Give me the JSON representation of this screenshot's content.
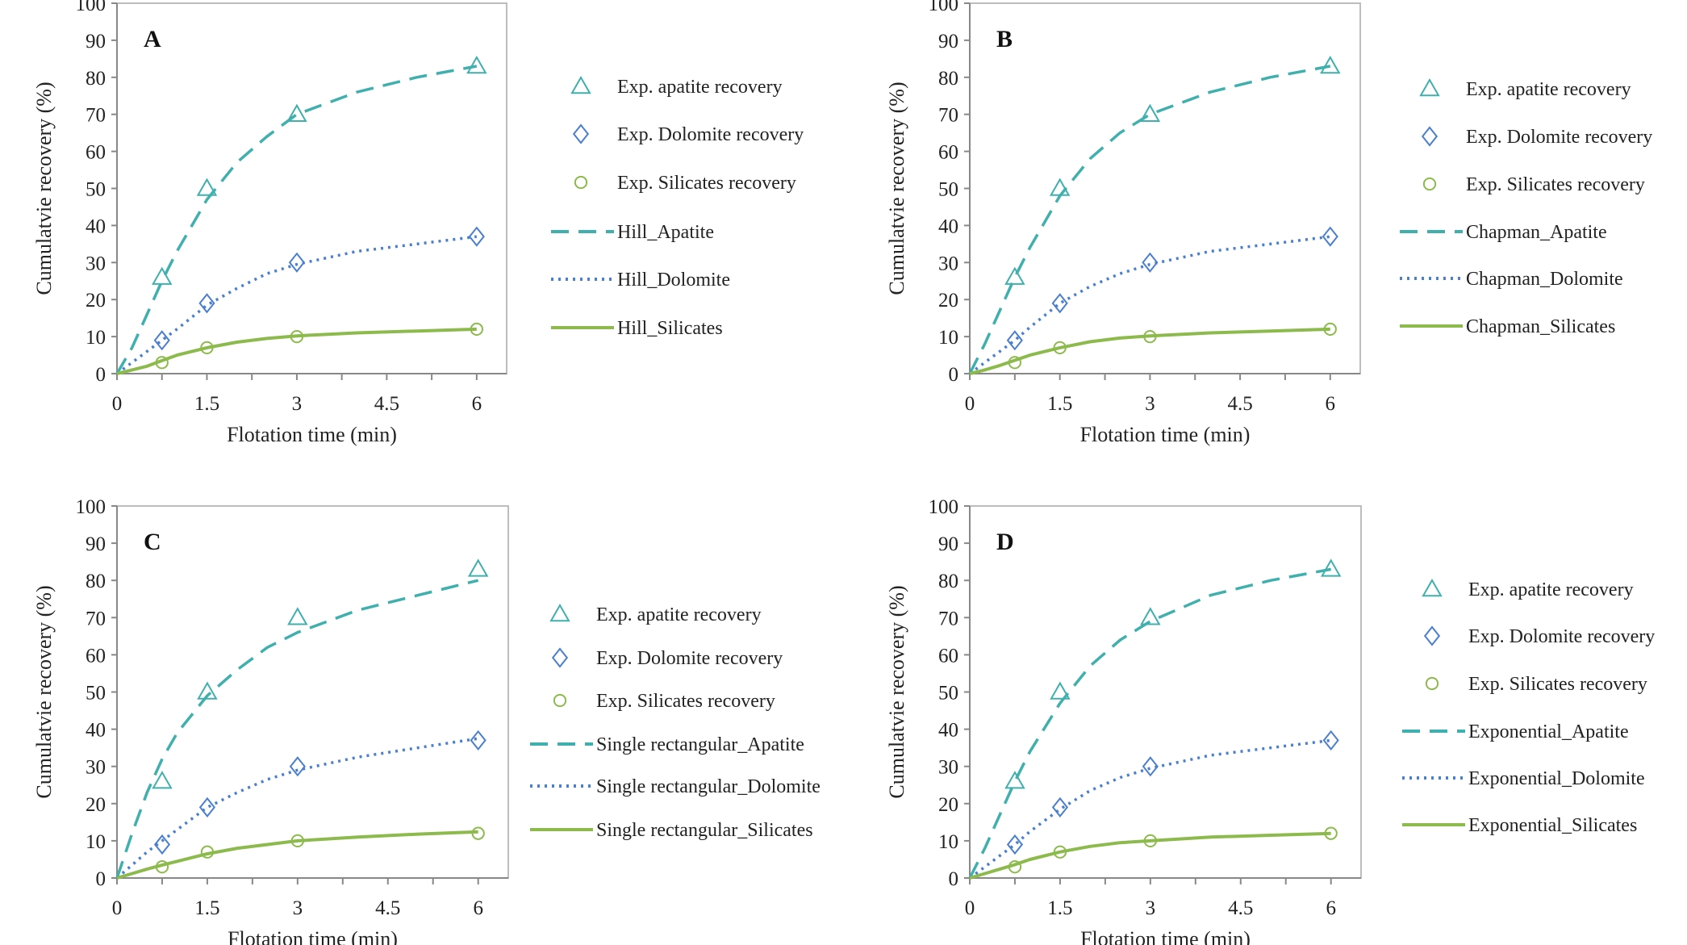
{
  "chart_data": [
    {
      "type": "line",
      "panel_label": "A",
      "xlabel": "Flotation time (min)",
      "ylabel": "Cumulatvie recovery  (%)",
      "xlim": [
        0,
        6.5
      ],
      "ylim": [
        0,
        100
      ],
      "xticks": [
        0,
        1.5,
        3,
        4.5,
        6
      ],
      "xtick_labels": [
        "0",
        "1.5",
        "3",
        "4.5",
        "6"
      ],
      "yticks": [
        0,
        10,
        20,
        30,
        40,
        50,
        60,
        70,
        80,
        90,
        100
      ],
      "ytick_labels": [
        "0",
        "10",
        "20",
        "30",
        "40",
        "50",
        "60",
        "70",
        "80",
        "90",
        "100"
      ],
      "grid": false,
      "legend_position": "right",
      "experimental": [
        {
          "name": "Exp. apatite recovery",
          "marker": "triangle",
          "color": "#3fb0ad",
          "x": [
            0,
            0.75,
            1.5,
            3,
            6
          ],
          "y": [
            0,
            26,
            50,
            70,
            83
          ]
        },
        {
          "name": "Exp. Dolomite recovery",
          "marker": "diamond",
          "color": "#4a7fcf",
          "x": [
            0,
            0.75,
            1.5,
            3,
            6
          ],
          "y": [
            0,
            9,
            19,
            30,
            37
          ]
        },
        {
          "name": "Exp. Silicates recovery",
          "marker": "circle",
          "color": "#8dba4c",
          "x": [
            0,
            0.75,
            1.5,
            3,
            6
          ],
          "y": [
            0,
            3,
            7,
            10,
            12
          ]
        }
      ],
      "models": [
        {
          "name": "Hill_Apatite",
          "style": "dashed",
          "color": "#3fb0ad",
          "x": [
            0,
            0.25,
            0.5,
            0.75,
            1,
            1.5,
            2,
            2.5,
            3,
            4,
            5,
            6
          ],
          "y": [
            0,
            7,
            16,
            25,
            33,
            47,
            57,
            64,
            70,
            76,
            80,
            83
          ]
        },
        {
          "name": "Hill_Dolomite",
          "style": "dotted",
          "color": "#4a7fcf",
          "x": [
            0,
            0.25,
            0.5,
            0.75,
            1,
            1.5,
            2,
            2.5,
            3,
            4,
            5,
            6
          ],
          "y": [
            0,
            3,
            6,
            9,
            12,
            18.5,
            23,
            27,
            29.5,
            33,
            35,
            37
          ]
        },
        {
          "name": "Hill_Silicates",
          "style": "solid",
          "color": "#8dba4c",
          "x": [
            0,
            0.25,
            0.5,
            0.75,
            1,
            1.5,
            2,
            2.5,
            3,
            4,
            5,
            6
          ],
          "y": [
            0,
            1,
            2,
            3.5,
            5,
            7,
            8.5,
            9.5,
            10.2,
            11,
            11.5,
            12
          ]
        }
      ]
    },
    {
      "type": "line",
      "panel_label": "B",
      "xlabel": "Flotation time (min)",
      "ylabel": "Cumulatvie recovery  (%)",
      "xlim": [
        0,
        6.5
      ],
      "ylim": [
        0,
        100
      ],
      "xticks": [
        0,
        1.5,
        3,
        4.5,
        6
      ],
      "xtick_labels": [
        "0",
        "1.5",
        "3",
        "4.5",
        "6"
      ],
      "yticks": [
        0,
        10,
        20,
        30,
        40,
        50,
        60,
        70,
        80,
        90,
        100
      ],
      "ytick_labels": [
        "0",
        "10",
        "20",
        "30",
        "40",
        "50",
        "60",
        "70",
        "80",
        "90",
        "100"
      ],
      "grid": false,
      "legend_position": "right",
      "experimental": [
        {
          "name": "Exp. apatite recovery",
          "marker": "triangle",
          "color": "#3fb0ad",
          "x": [
            0,
            0.75,
            1.5,
            3,
            6
          ],
          "y": [
            0,
            26,
            50,
            70,
            83
          ]
        },
        {
          "name": "Exp. Dolomite recovery",
          "marker": "diamond",
          "color": "#4a7fcf",
          "x": [
            0,
            0.75,
            1.5,
            3,
            6
          ],
          "y": [
            0,
            9,
            19,
            30,
            37
          ]
        },
        {
          "name": "Exp. Silicates recovery",
          "marker": "circle",
          "color": "#8dba4c",
          "x": [
            0,
            0.75,
            1.5,
            3,
            6
          ],
          "y": [
            0,
            3,
            7,
            10,
            12
          ]
        }
      ],
      "models": [
        {
          "name": "Chapman_Apatite",
          "style": "dashed",
          "color": "#3fb0ad",
          "x": [
            0,
            0.25,
            0.5,
            0.75,
            1,
            1.5,
            2,
            2.5,
            3,
            4,
            5,
            6
          ],
          "y": [
            0,
            8,
            17,
            26,
            34,
            48,
            58,
            65,
            70,
            76,
            80,
            83
          ]
        },
        {
          "name": "Chapman_Dolomite",
          "style": "dotted",
          "color": "#4a7fcf",
          "x": [
            0,
            0.25,
            0.5,
            0.75,
            1,
            1.5,
            2,
            2.5,
            3,
            4,
            5,
            6
          ],
          "y": [
            0,
            3,
            6,
            9,
            12.5,
            19,
            23.5,
            27,
            29.5,
            33,
            35,
            37
          ]
        },
        {
          "name": "Chapman_Silicates",
          "style": "solid",
          "color": "#8dba4c",
          "x": [
            0,
            0.25,
            0.5,
            0.75,
            1,
            1.5,
            2,
            2.5,
            3,
            4,
            5,
            6
          ],
          "y": [
            0,
            1,
            2.2,
            3.6,
            5,
            7,
            8.6,
            9.6,
            10.2,
            11,
            11.5,
            12
          ]
        }
      ]
    },
    {
      "type": "line",
      "panel_label": "C",
      "xlabel": "Flotation time (min)",
      "ylabel": "Cumulatvie recovery  (%)",
      "xlim": [
        0,
        6.5
      ],
      "ylim": [
        0,
        100
      ],
      "xticks": [
        0,
        1.5,
        3,
        4.5,
        6
      ],
      "xtick_labels": [
        "0",
        "1.5",
        "3",
        "4.5",
        "6"
      ],
      "yticks": [
        0,
        10,
        20,
        30,
        40,
        50,
        60,
        70,
        80,
        90,
        100
      ],
      "ytick_labels": [
        "0",
        "10",
        "20",
        "30",
        "40",
        "50",
        "60",
        "70",
        "80",
        "90",
        "100"
      ],
      "grid": false,
      "legend_position": "right",
      "experimental": [
        {
          "name": "Exp. apatite recovery",
          "marker": "triangle",
          "color": "#3fb0ad",
          "x": [
            0,
            0.75,
            1.5,
            3,
            6
          ],
          "y": [
            0,
            26,
            50,
            70,
            83
          ]
        },
        {
          "name": "Exp. Dolomite recovery",
          "marker": "diamond",
          "color": "#4a7fcf",
          "x": [
            0,
            0.75,
            1.5,
            3,
            6
          ],
          "y": [
            0,
            9,
            19,
            30,
            37
          ]
        },
        {
          "name": "Exp. Silicates recovery",
          "marker": "circle",
          "color": "#8dba4c",
          "x": [
            0,
            0.75,
            1.5,
            3,
            6
          ],
          "y": [
            0,
            3,
            7,
            10,
            12
          ]
        }
      ],
      "models": [
        {
          "name": "Single rectangular_Apatite",
          "style": "dashed",
          "color": "#3fb0ad",
          "x": [
            0,
            0.25,
            0.5,
            0.75,
            1,
            1.5,
            2,
            2.5,
            3,
            4,
            5,
            6
          ],
          "y": [
            0,
            12,
            23,
            32,
            39,
            49,
            56,
            62,
            66,
            72,
            76,
            80
          ]
        },
        {
          "name": "Single rectangular_Dolomite",
          "style": "dotted",
          "color": "#4a7fcf",
          "x": [
            0,
            0.25,
            0.5,
            0.75,
            1,
            1.5,
            2,
            2.5,
            3,
            4,
            5,
            6
          ],
          "y": [
            0,
            3.5,
            7,
            10,
            13,
            19,
            23,
            26.5,
            29,
            32.5,
            35,
            37.5
          ]
        },
        {
          "name": "Single rectangular_Silicates",
          "style": "solid",
          "color": "#8dba4c",
          "x": [
            0,
            0.25,
            0.5,
            0.75,
            1,
            1.5,
            2,
            2.5,
            3,
            4,
            5,
            6
          ],
          "y": [
            0,
            1.2,
            2.4,
            3.5,
            4.5,
            6.5,
            8,
            9,
            10,
            11,
            11.8,
            12.4
          ]
        }
      ]
    },
    {
      "type": "line",
      "panel_label": "D",
      "xlabel": "Flotation time (min)",
      "ylabel": "Cumulatvie recovery  (%)",
      "xlim": [
        0,
        6.5
      ],
      "ylim": [
        0,
        100
      ],
      "xticks": [
        0,
        1.5,
        3,
        4.5,
        6
      ],
      "xtick_labels": [
        "0",
        "1.5",
        "3",
        "4.5",
        "6"
      ],
      "yticks": [
        0,
        10,
        20,
        30,
        40,
        50,
        60,
        70,
        80,
        90,
        100
      ],
      "ytick_labels": [
        "0",
        "10",
        "20",
        "30",
        "40",
        "50",
        "60",
        "70",
        "80",
        "90",
        "100"
      ],
      "grid": false,
      "legend_position": "right",
      "experimental": [
        {
          "name": "Exp. apatite recovery",
          "marker": "triangle",
          "color": "#3fb0ad",
          "x": [
            0,
            0.75,
            1.5,
            3,
            6
          ],
          "y": [
            0,
            26,
            50,
            70,
            83
          ]
        },
        {
          "name": "Exp. Dolomite recovery",
          "marker": "diamond",
          "color": "#4a7fcf",
          "x": [
            0,
            0.75,
            1.5,
            3,
            6
          ],
          "y": [
            0,
            9,
            19,
            30,
            37
          ]
        },
        {
          "name": "Exp. Silicates recovery",
          "marker": "circle",
          "color": "#8dba4c",
          "x": [
            0,
            0.75,
            1.5,
            3,
            6
          ],
          "y": [
            0,
            3,
            7,
            10,
            12
          ]
        }
      ],
      "models": [
        {
          "name": "Exponential_Apatite",
          "style": "dashed",
          "color": "#3fb0ad",
          "x": [
            0,
            0.25,
            0.5,
            0.75,
            1,
            1.5,
            2,
            2.5,
            3,
            4,
            5,
            6
          ],
          "y": [
            0,
            8,
            17,
            26,
            34,
            47,
            57,
            64,
            69,
            76,
            80,
            83
          ]
        },
        {
          "name": "Exponential_Dolomite",
          "style": "dotted",
          "color": "#4a7fcf",
          "x": [
            0,
            0.25,
            0.5,
            0.75,
            1,
            1.5,
            2,
            2.5,
            3,
            4,
            5,
            6
          ],
          "y": [
            0,
            3,
            6,
            9,
            12.5,
            18.5,
            23.5,
            27,
            29.5,
            33,
            35,
            37
          ]
        },
        {
          "name": "Exponential_Silicates",
          "style": "solid",
          "color": "#8dba4c",
          "x": [
            0,
            0.25,
            0.5,
            0.75,
            1,
            1.5,
            2,
            2.5,
            3,
            4,
            5,
            6
          ],
          "y": [
            0,
            1.2,
            2.4,
            3.6,
            5,
            7,
            8.5,
            9.5,
            10,
            11,
            11.5,
            12
          ]
        }
      ]
    }
  ]
}
